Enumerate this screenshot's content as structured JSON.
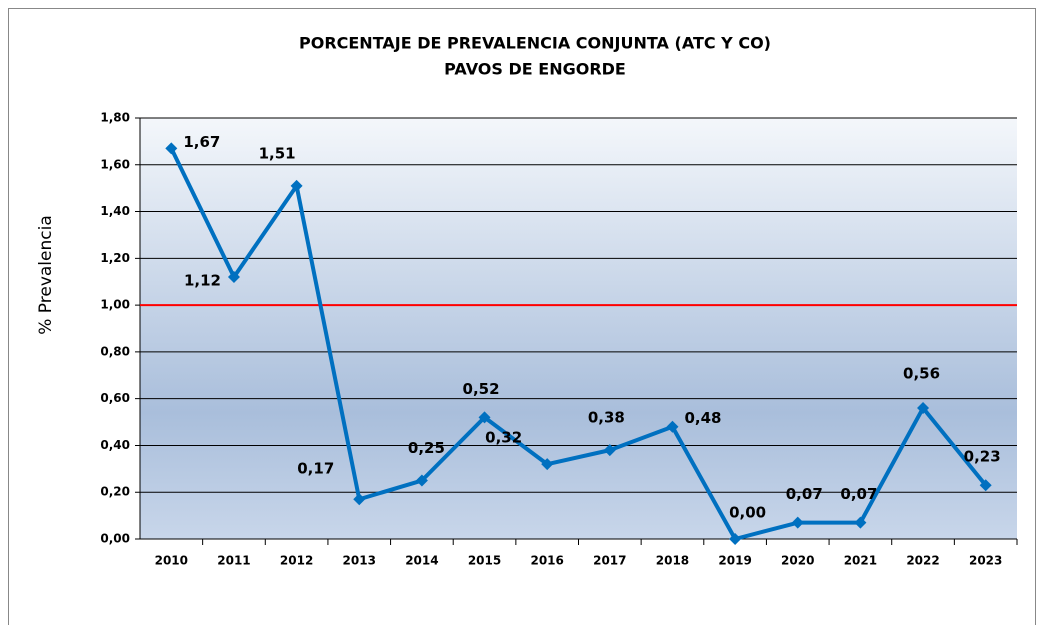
{
  "chart_data": {
    "type": "line",
    "title": "PORCENTAJE DE PREVALENCIA CONJUNTA (ATC Y CO)",
    "subtitle": "PAVOS DE ENGORDE",
    "y_label": "% Prevalencia",
    "categories": [
      "2010",
      "2011",
      "2012",
      "2013",
      "2014",
      "2015",
      "2016",
      "2017",
      "2018",
      "2019",
      "2020",
      "2021",
      "2022",
      "2023"
    ],
    "series": [
      {
        "name": "% Prevalencia",
        "color": "#0070c0",
        "values": [
          1.67,
          1.12,
          1.51,
          0.17,
          0.25,
          0.52,
          0.32,
          0.38,
          0.48,
          0,
          0.07,
          0.07,
          0.56,
          0.23
        ],
        "value_labels": [
          "1,67",
          "1,12",
          "1,51",
          "0,17",
          "0,25",
          "0,52",
          "0,32",
          "0,38",
          "0,48",
          "0,00",
          "0,07",
          "0,07",
          "0,56",
          "0,23"
        ]
      }
    ],
    "reference_line": {
      "value": 1,
      "color": "#ff0000"
    },
    "ylim": [
      0,
      1.8
    ],
    "yticks": [
      {
        "value": 0,
        "label": "0,00"
      },
      {
        "value": 0.2,
        "label": "0,20"
      },
      {
        "value": 0.4,
        "label": "0,40"
      },
      {
        "value": 0.6,
        "label": "0,60"
      },
      {
        "value": 0.8,
        "label": "0,80"
      },
      {
        "value": 1,
        "label": "1,00"
      },
      {
        "value": 1.2,
        "label": "1,20"
      },
      {
        "value": 1.4,
        "label": "1,40"
      },
      {
        "value": 1.6,
        "label": "1,60"
      },
      {
        "value": 1.8,
        "label": "1,80"
      }
    ],
    "grid": true
  }
}
